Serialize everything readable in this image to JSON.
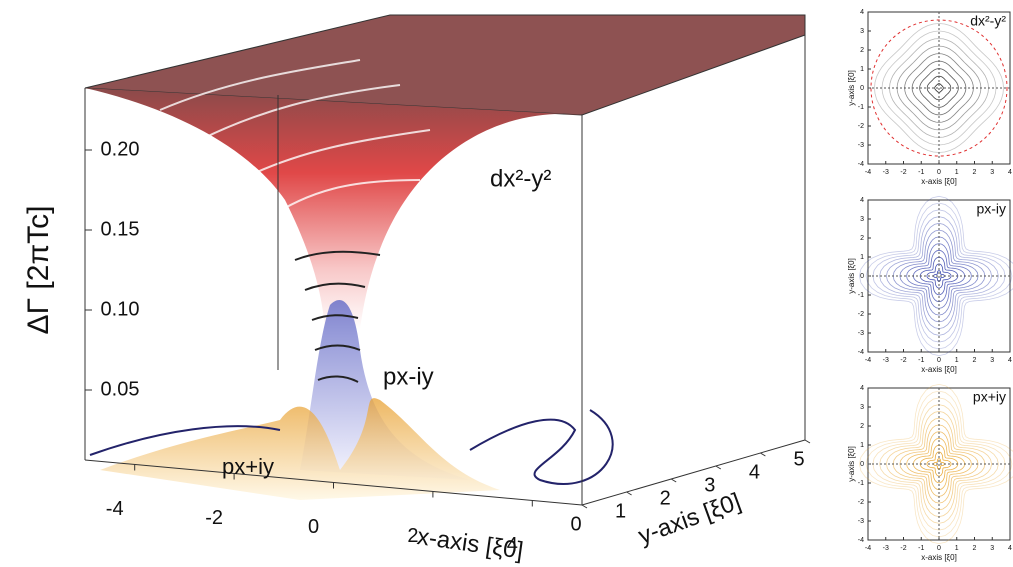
{
  "chart_data": [
    {
      "type": "surface3d",
      "zlabel": "ΔΓ [2πTc]",
      "xlabel": "x-axis [ξ0]",
      "ylabel": "y-axis [ξ0]",
      "annotations": [
        "dx²-y²",
        "px-iy",
        "px+iy"
      ],
      "xlim": [
        -5,
        5
      ],
      "ylim": [
        0,
        5
      ],
      "xticks": [
        -4,
        -2,
        0,
        2,
        4
      ],
      "yticks": [
        0,
        1,
        2,
        3,
        4,
        5
      ],
      "zticks": [
        0.05,
        {
          "value": 0.1,
          "label": "0.10"
        },
        0.15,
        {
          "value": 0.2,
          "label": "0.20"
        }
      ]
    },
    {
      "type": "contour",
      "title": "dx²-y²",
      "color": "#222222",
      "xlabel": "x-axis [ξ0]",
      "ylabel": "y-axis [ξ0]",
      "xlim": [
        -4,
        4
      ],
      "ylim": [
        -4,
        4
      ],
      "xticks": [
        -4,
        -3,
        -2,
        -1,
        0,
        1,
        2,
        3,
        4
      ],
      "yticks": [
        -4,
        -3,
        -2,
        -1,
        0,
        1,
        2,
        3,
        4
      ]
    },
    {
      "type": "contour",
      "title": "px-iy",
      "color": "#2a3aa8",
      "xlabel": "x-axis [ξ0]",
      "ylabel": "y-axis [ξ0]",
      "xlim": [
        -4,
        4
      ],
      "ylim": [
        -4,
        4
      ],
      "xticks": [
        -4,
        -3,
        -2,
        -1,
        0,
        1,
        2,
        3,
        4
      ],
      "yticks": [
        -4,
        -3,
        -2,
        -1,
        0,
        1,
        2,
        3,
        4
      ]
    },
    {
      "type": "contour",
      "title": "px+iy",
      "color": "#e8a020",
      "xlabel": "x-axis [ξ0]",
      "ylabel": "y-axis [ξ0]",
      "xlim": [
        -4,
        4
      ],
      "ylim": [
        -4,
        4
      ],
      "xticks": [
        -4,
        -3,
        -2,
        -1,
        0,
        1,
        2,
        3,
        4
      ],
      "yticks": [
        -4,
        -3,
        -2,
        -1,
        0,
        1,
        2,
        3,
        4
      ]
    }
  ]
}
